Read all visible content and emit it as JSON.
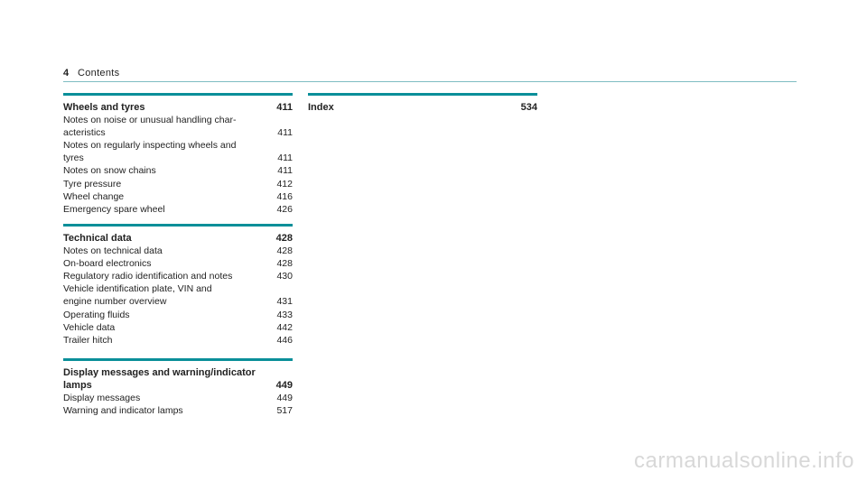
{
  "header": {
    "page_number": "4",
    "title": "Contents"
  },
  "sections": {
    "wheels": {
      "title": "Wheels and tyres",
      "page": "411",
      "entries": [
        {
          "text_line1": "Notes on noise or unusual handling char-",
          "label": "acteristics",
          "page": "411"
        },
        {
          "text_line1": "Notes on regularly inspecting wheels and",
          "label": "tyres",
          "page": "411"
        },
        {
          "label": "Notes on snow chains",
          "page": "411"
        },
        {
          "label": "Tyre pressure",
          "page": "412"
        },
        {
          "label": "Wheel change",
          "page": "416"
        },
        {
          "label": "Emergency spare wheel",
          "page": "426"
        }
      ]
    },
    "technical": {
      "title": "Technical data",
      "page": "428",
      "entries": [
        {
          "label": "Notes on technical data",
          "page": "428"
        },
        {
          "label": "On-board electronics",
          "page": "428"
        },
        {
          "label": "Regulatory radio identification and notes",
          "page": "430"
        },
        {
          "text_line1": "Vehicle identification plate, VIN and",
          "label": "engine number overview",
          "page": "431"
        },
        {
          "label": "Operating fluids",
          "page": "433"
        },
        {
          "label": "Vehicle data",
          "page": "442"
        },
        {
          "label": "Trailer hitch",
          "page": "446"
        }
      ]
    },
    "display": {
      "title_line1": "Display messages and warning/indicator",
      "title_line2": "lamps",
      "page": "449",
      "entries": [
        {
          "label": "Display messages",
          "page": "449"
        },
        {
          "label": "Warning and indicator lamps",
          "page": "517"
        }
      ]
    },
    "index": {
      "title": "Index",
      "page": "534"
    }
  },
  "watermark": "carmanualsonline.info",
  "colors": {
    "accent": "#0a8f99",
    "rule": "#7fbcc2"
  }
}
